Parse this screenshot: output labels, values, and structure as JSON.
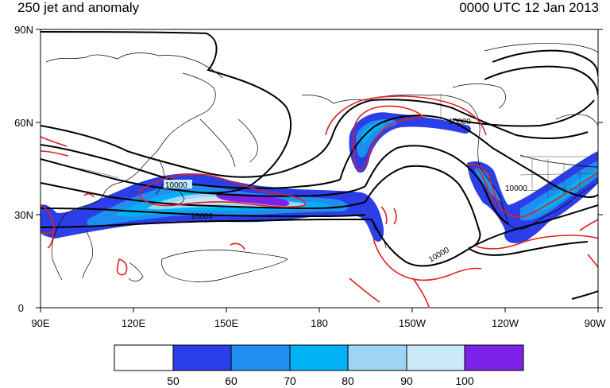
{
  "title_left": "250 jet and anomaly",
  "title_right": "0000 UTC 12 Jan 2013",
  "map": {
    "lat_ticks": [
      "90N",
      "60N",
      "30N",
      "0"
    ],
    "lon_ticks": [
      "90E",
      "120E",
      "150E",
      "180",
      "150W",
      "120W",
      "90W"
    ],
    "contour_labels": [
      "10000",
      "10000",
      "10000",
      "10000",
      "10000"
    ]
  },
  "legend": {
    "labels": [
      "50",
      "60",
      "70",
      "80",
      "90",
      "100"
    ],
    "colors": [
      "#ffffff",
      "#2b3ee8",
      "#1e8ef0",
      "#00b2f5",
      "#9dd5f2",
      "#c9e8f8",
      "#7b22e6"
    ]
  },
  "colors": {
    "geopotential_contour": "#000000",
    "anomaly_contour": "#e02020",
    "jet_50": "#2b3ee8",
    "jet_60": "#1e8ef0",
    "jet_70": "#00b2f5",
    "jet_80": "#9dd5f2",
    "jet_90": "#c9e8f8",
    "jet_100": "#7b22e6"
  }
}
